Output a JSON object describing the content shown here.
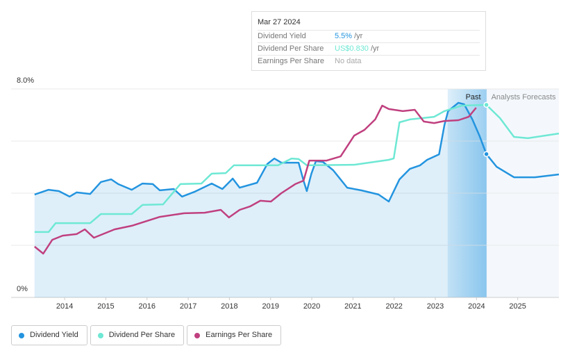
{
  "chart_data": {
    "type": "line",
    "xlim": [
      2012.7,
      2026.0
    ],
    "xticks": [
      2014,
      2015,
      2016,
      2017,
      2018,
      2019,
      2020,
      2021,
      2022,
      2023,
      2024,
      2025
    ],
    "ylim": [
      0,
      8
    ],
    "yticks": [
      {
        "value": 0,
        "label": "0%"
      },
      {
        "value": 8,
        "label": "8.0%"
      }
    ],
    "grid_lines": [
      2,
      4,
      6
    ],
    "past_range": [
      2023.3,
      2024.24
    ],
    "past_label": "Past",
    "forecast_label": "Analysts Forecasts",
    "series": [
      {
        "name": "Dividend Yield",
        "color": "#2394df",
        "fill": true,
        "x": [
          2013.27,
          2013.61,
          2013.86,
          2014.12,
          2014.29,
          2014.62,
          2014.88,
          2015.13,
          2015.3,
          2015.63,
          2015.89,
          2016.14,
          2016.31,
          2016.65,
          2016.85,
          2017.15,
          2017.57,
          2017.83,
          2018.08,
          2018.25,
          2018.67,
          2018.92,
          2019.09,
          2019.26,
          2019.68,
          2019.8,
          2019.88,
          2019.99,
          2020.1,
          2020.27,
          2020.52,
          2020.86,
          2021.2,
          2021.62,
          2021.87,
          2022.13,
          2022.38,
          2022.63,
          2022.8,
          2023.09,
          2023.22,
          2023.31,
          2023.56,
          2023.7,
          2023.9,
          2024.07,
          2024.24,
          2024.49,
          2024.91,
          2025.42,
          2026.0
        ],
        "values": [
          3.95,
          4.13,
          4.08,
          3.87,
          4.03,
          3.97,
          4.43,
          4.53,
          4.35,
          4.13,
          4.37,
          4.35,
          4.11,
          4.16,
          3.87,
          4.05,
          4.37,
          4.16,
          4.56,
          4.21,
          4.4,
          5.12,
          5.33,
          5.17,
          5.17,
          4.48,
          4.08,
          4.75,
          5.23,
          5.2,
          4.88,
          4.21,
          4.11,
          3.95,
          3.68,
          4.53,
          4.93,
          5.07,
          5.28,
          5.49,
          6.61,
          7.15,
          7.47,
          7.41,
          6.83,
          6.21,
          5.5,
          5.01,
          4.61,
          4.61,
          4.72
        ]
      },
      {
        "name": "Dividend Per Share",
        "color": "#6ee8d4",
        "fill": false,
        "x": [
          2013.27,
          2013.61,
          2013.78,
          2014.62,
          2014.88,
          2015.63,
          2015.89,
          2016.39,
          2016.81,
          2017.32,
          2017.57,
          2017.91,
          2018.11,
          2019.18,
          2019.51,
          2019.68,
          2019.88,
          2021.03,
          2021.87,
          2021.99,
          2022.13,
          2022.38,
          2022.97,
          2023.22,
          2023.64,
          2024.24,
          2024.57,
          2024.91,
          2025.25,
          2026.0
        ],
        "values": [
          2.51,
          2.51,
          2.85,
          2.85,
          3.2,
          3.2,
          3.55,
          3.57,
          4.35,
          4.37,
          4.75,
          4.77,
          5.07,
          5.07,
          5.33,
          5.31,
          5.07,
          5.09,
          5.28,
          5.33,
          6.72,
          6.83,
          6.93,
          7.15,
          7.36,
          7.39,
          6.88,
          6.16,
          6.11,
          6.29
        ]
      },
      {
        "name": "Earnings Per Share",
        "color": "#c0407f",
        "fill": false,
        "x": [
          2013.27,
          2013.48,
          2013.7,
          2013.95,
          2014.29,
          2014.49,
          2014.71,
          2015.21,
          2015.63,
          2016.31,
          2016.9,
          2017.4,
          2017.79,
          2017.99,
          2018.25,
          2018.5,
          2018.75,
          2019.01,
          2019.26,
          2019.6,
          2019.8,
          2019.94,
          2020.36,
          2020.7,
          2021.03,
          2021.28,
          2021.54,
          2021.71,
          2021.87,
          2022.21,
          2022.5,
          2022.72,
          2022.97,
          2023.22,
          2023.56,
          2023.81,
          2023.99
        ],
        "values": [
          1.95,
          1.68,
          2.21,
          2.37,
          2.43,
          2.61,
          2.29,
          2.61,
          2.75,
          3.09,
          3.23,
          3.25,
          3.36,
          3.07,
          3.36,
          3.49,
          3.71,
          3.68,
          4.0,
          4.35,
          4.48,
          5.25,
          5.25,
          5.41,
          6.21,
          6.43,
          6.83,
          7.36,
          7.23,
          7.15,
          7.2,
          6.75,
          6.69,
          6.77,
          6.8,
          6.93,
          7.28
        ]
      }
    ],
    "tooltip": {
      "date": "Mar 27 2024",
      "rows": [
        {
          "label": "Dividend Yield",
          "value": "5.5%",
          "unit": "/yr",
          "color": "#2394df"
        },
        {
          "label": "Dividend Per Share",
          "value": "US$0.830",
          "unit": "/yr",
          "color": "#6ee8d4"
        },
        {
          "label": "Earnings Per Share",
          "value": "No data",
          "unit": null,
          "color": "#aaa"
        }
      ]
    }
  }
}
